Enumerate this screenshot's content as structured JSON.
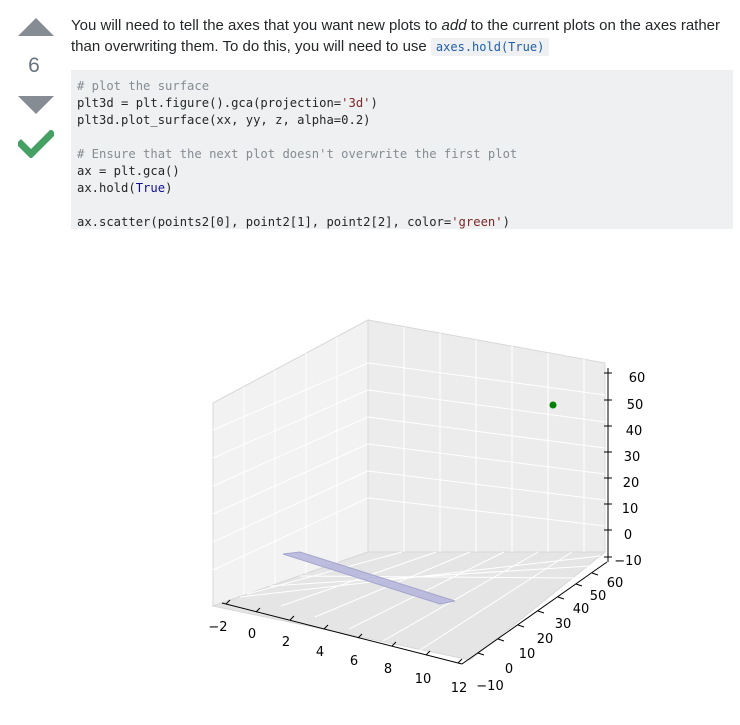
{
  "vote": {
    "count": "6"
  },
  "answer": {
    "text_before": "You will need to tell the axes that you want new plots to ",
    "text_em": "add",
    "text_after": " to the current plots on the axes rather than overwriting them. To do this, you will need to use ",
    "inline_code": "axes.hold(True)"
  },
  "code": {
    "line1": "# plot the surface",
    "line2_a": "plt3d = plt.figure().gca(projection=",
    "line2_s": "'3d'",
    "line2_b": ")",
    "line3": "plt3d.plot_surface(xx, yy, z, alpha=0.2)",
    "line5": "# Ensure that the next plot doesn't overwrite the first plot",
    "line6": "ax = plt.gca()",
    "line7_a": "ax.hold(",
    "line7_k": "True",
    "line7_b": ")",
    "line9_a": "ax.scatter(points2[0], point2[1], point2[2], color=",
    "line9_s": "'green'",
    "line9_b": ")"
  },
  "plot": {
    "x_ticks": [
      "−2",
      "0",
      "2",
      "4",
      "6",
      "8",
      "10",
      "12"
    ],
    "y_ticks": [
      "−10",
      "0",
      "10",
      "20",
      "30",
      "40",
      "50",
      "60"
    ],
    "z_ticks": [
      "60",
      "50",
      "40",
      "30",
      "20",
      "10",
      "0",
      "−10"
    ],
    "scatter_color": "#008000",
    "surface_color": "#b4b4dc"
  }
}
